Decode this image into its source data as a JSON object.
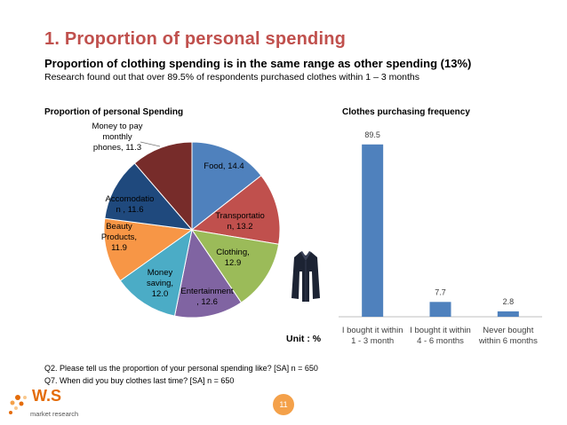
{
  "header": {
    "title": "1. Proportion of personal spending",
    "subtitle": "Proportion of clothing spending is in the same range as other spending (13%)",
    "description": "Research found out that over 89.5% of respondents purchased clothes within 1 – 3 months"
  },
  "colors": {
    "title": "#c0504d",
    "bar": "#4f81bd"
  },
  "chart_data": [
    {
      "type": "pie",
      "title": "Proportion of personal Spending",
      "slices": [
        {
          "label": "Food,  14.4",
          "value": 14.4,
          "color": "#4f81bd"
        },
        {
          "label": "Transportatio n,  13.2",
          "value": 13.2,
          "color": "#c0504d"
        },
        {
          "label": "Clothing, 12.9",
          "value": 12.9,
          "color": "#9bbb59"
        },
        {
          "label": "Entertainment , 12.6",
          "value": 12.6,
          "color": "#8064a2"
        },
        {
          "label": "Money saving, 12.0",
          "value": 12.0,
          "color": "#4bacc6"
        },
        {
          "label": "Beauty Products, 11.9",
          "value": 11.9,
          "color": "#f79646"
        },
        {
          "label": "Accomodatio n ,  11.6",
          "value": 11.6,
          "color": "#1f497d"
        },
        {
          "label": "Money to pay monthly phones,  11.3",
          "value": 11.3,
          "color": "#772c2a"
        }
      ]
    },
    {
      "type": "bar",
      "title": "Clothes purchasing frequency",
      "categories": [
        "I bought it within 1 - 3 month",
        "I bought it within 4 - 6 months",
        "Never bought within 6 months"
      ],
      "values": [
        89.5,
        7.7,
        2.8
      ],
      "ylim": [
        0,
        100
      ]
    }
  ],
  "unit_label": "Unit : %",
  "notes": {
    "q2": "Q2. Please tell us the proportion of your personal spending like? [SA] n = 650",
    "q7": "Q7. When did you buy clothes last time? [SA] n = 650"
  },
  "footer": {
    "logo_text": "W.S",
    "logo_sub": "market research",
    "page_number": "11"
  },
  "icons": {
    "shirt": "shirt-icon",
    "logo": "logo-flower-icon"
  }
}
